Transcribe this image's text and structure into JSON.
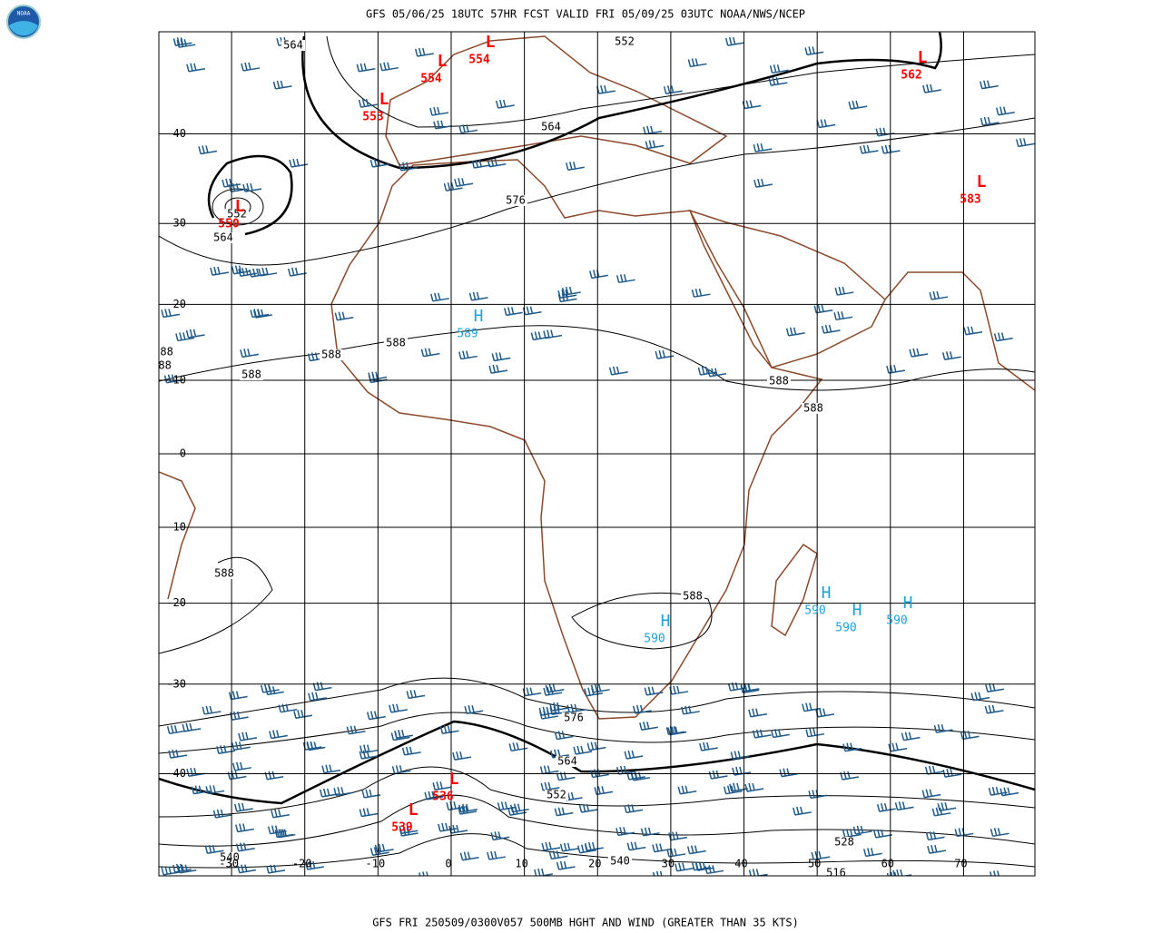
{
  "header": {
    "title": "GFS 05/06/25 18UTC 57HR FCST VALID FRI 05/09/25 03UTC NOAA/NWS/NCEP"
  },
  "footer": {
    "caption": "GFS FRI 250509/0300V057 500MB HGHT AND WIND (GREATER THAN 35 KTS)"
  },
  "map": {
    "latitudes": [
      40,
      30,
      20,
      10,
      0,
      -10,
      -20,
      -30,
      -40
    ],
    "longitudes": [
      -30,
      -20,
      -10,
      0,
      10,
      20,
      30,
      40,
      50,
      60,
      70
    ],
    "contour_labels": [
      564,
      552,
      564,
      576,
      552,
      564,
      588,
      588,
      588,
      588,
      588,
      588,
      588,
      588,
      588,
      576,
      564,
      552,
      540,
      540,
      528,
      516
    ],
    "lows": {
      "letter": "L",
      "values": [
        554,
        554,
        553,
        550,
        562,
        583,
        536,
        539
      ]
    },
    "highs": {
      "letter": "H",
      "values": [
        589,
        590,
        590,
        590,
        590
      ]
    }
  }
}
